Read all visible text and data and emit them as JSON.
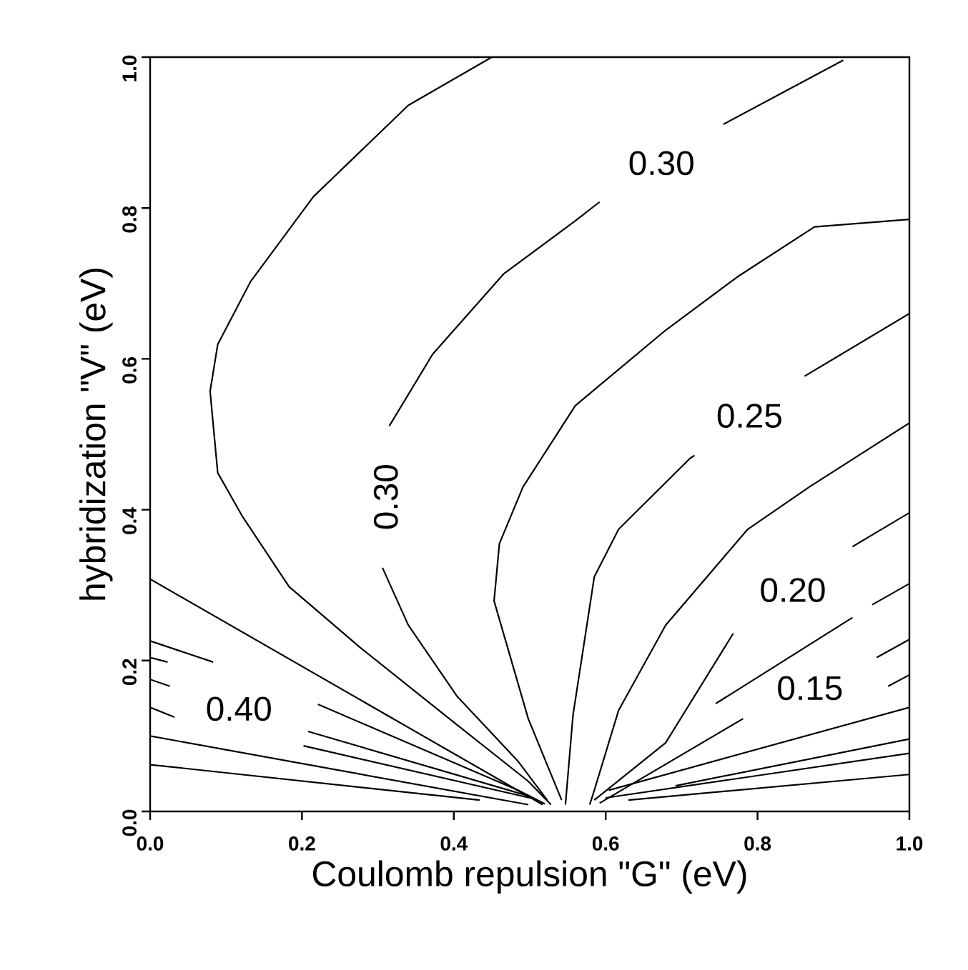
{
  "chart_data": {
    "type": "line",
    "xlabel": "Coulomb repulsion \"G\" (eV)",
    "ylabel": "hybridization \"V\" (eV)",
    "xlim": [
      0,
      1
    ],
    "ylim": [
      0,
      1
    ],
    "xticks": [
      {
        "value": 0,
        "label": "0.0"
      },
      0.2,
      0.4,
      0.6,
      0.8,
      {
        "value": 1,
        "label": "1.0"
      }
    ],
    "yticks": [
      {
        "value": 0,
        "label": "0.0"
      },
      0.2,
      0.4,
      0.6,
      0.8,
      {
        "value": 1,
        "label": "1.0"
      }
    ],
    "grid": false,
    "legend": false,
    "marker": "none",
    "line_style": "solid",
    "series": [
      {
        "color": "#000000",
        "x": [
          0.528,
          0.498,
          0.404,
          0.277,
          0.183,
          0.121,
          0.089,
          0.079,
          0.089,
          0.132,
          0.215,
          0.34,
          0.45
        ],
        "values": [
          0.009,
          0.04,
          0.115,
          0.217,
          0.298,
          0.392,
          0.449,
          0.557,
          0.619,
          0.702,
          0.815,
          0.936,
          1.0
        ]
      },
      {
        "name": "0.30",
        "color": "#000000",
        "x": [
          0.523,
          0.485,
          0.404,
          0.34,
          0.306,
          0.31,
          0.315,
          0.372,
          0.466,
          0.56,
          0.592,
          0.7,
          0.755,
          0.913
        ],
        "values": [
          0.015,
          0.066,
          0.153,
          0.247,
          0.323,
          null,
          0.511,
          0.606,
          0.713,
          0.783,
          0.808,
          null,
          0.911,
          0.996
        ]
      },
      {
        "color": "#000000",
        "x": [
          0.542,
          0.498,
          0.453,
          0.46,
          0.491,
          0.56,
          0.679,
          0.774,
          0.875,
          1.0
        ],
        "values": [
          0.015,
          0.123,
          0.279,
          0.355,
          0.43,
          0.538,
          0.638,
          0.709,
          0.775,
          0.785
        ]
      },
      {
        "name": "0.25",
        "color": "#000000",
        "x": [
          0.547,
          0.557,
          0.585,
          0.617,
          0.711,
          0.717,
          0.8,
          0.862,
          1.0
        ],
        "values": [
          0.009,
          0.128,
          0.311,
          0.374,
          0.468,
          0.472,
          null,
          0.577,
          0.66
        ]
      },
      {
        "color": "#000000",
        "x": [
          0.579,
          0.585,
          0.617,
          0.679,
          0.787,
          0.868,
          1.0
        ],
        "values": [
          0.009,
          0.028,
          0.134,
          0.247,
          0.374,
          0.43,
          0.515
        ]
      },
      {
        "name": "0.20",
        "color": "#000000",
        "x": [
          0.585,
          0.679,
          0.768,
          0.85,
          0.925,
          1.0
        ],
        "values": [
          0.015,
          0.091,
          0.236,
          null,
          0.351,
          0.396
        ]
      },
      {
        "color": "#000000",
        "x": [
          0.745,
          0.925,
          0.94,
          0.951,
          1.0
        ],
        "values": [
          0.143,
          0.257,
          null,
          0.274,
          0.302
        ]
      },
      {
        "name": "0.15",
        "color": "#000000",
        "x": [
          0.592,
          0.781,
          0.87,
          0.957,
          1.0
        ],
        "values": [
          0.011,
          0.123,
          null,
          0.204,
          0.228
        ]
      },
      {
        "color": "#000000",
        "x": [
          0.972,
          1.0
        ],
        "values": [
          0.166,
          0.181
        ]
      },
      {
        "color": "#000000",
        "x": [
          0.604,
          1.0
        ],
        "values": [
          0.028,
          0.138
        ]
      },
      {
        "color": "#000000",
        "x": [
          0.692,
          1.0
        ],
        "values": [
          0.034,
          0.096
        ]
      },
      {
        "color": "#000000",
        "x": [
          0.63,
          1.0
        ],
        "values": [
          0.015,
          0.049
        ]
      },
      {
        "color": "#000000",
        "x": [
          0.6,
          1.0
        ],
        "values": [
          0.018,
          0.077
        ]
      },
      {
        "color": "#000000",
        "x": [
          0.0,
          0.517
        ],
        "values": [
          0.308,
          0.009
        ]
      },
      {
        "color": "#000000",
        "x": [
          0.0,
          0.083
        ],
        "values": [
          0.226,
          0.198
        ]
      },
      {
        "color": "#000000",
        "x": [
          0.0,
          0.023,
          0.1,
          0.221,
          0.485,
          0.52
        ],
        "values": [
          0.204,
          0.198,
          null,
          0.142,
          0.028,
          0.01
        ]
      },
      {
        "name": "0.40",
        "color": "#000000",
        "x": [
          0.0,
          0.026,
          0.1,
          0.208,
          0.5
        ],
        "values": [
          0.175,
          0.166,
          null,
          0.106,
          0.02
        ]
      },
      {
        "color": "#000000",
        "x": [
          0.0,
          0.032,
          0.1,
          0.202,
          0.5
        ],
        "values": [
          0.138,
          0.125,
          null,
          0.087,
          0.018
        ]
      },
      {
        "color": "#000000",
        "x": [
          0.0,
          0.498
        ],
        "values": [
          0.1,
          0.009
        ]
      },
      {
        "color": "#000000",
        "x": [
          0.0,
          0.434
        ],
        "values": [
          0.062,
          0.015
        ]
      }
    ]
  }
}
